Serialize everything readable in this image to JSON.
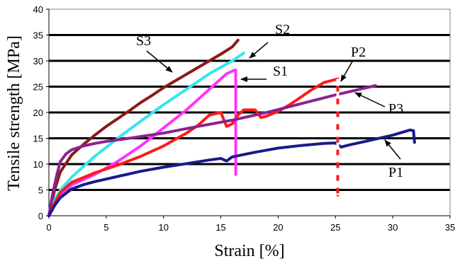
{
  "chart_data": {
    "type": "line",
    "xlabel": "Strain [%]",
    "ylabel": "Tensile strength [MPa]",
    "xlim": [
      0,
      35
    ],
    "ylim": [
      0,
      40
    ],
    "xticks": [
      "0",
      "5",
      "10",
      "15",
      "20",
      "25",
      "30",
      "35"
    ],
    "yticks": [
      "0",
      "5",
      "10",
      "15",
      "20",
      "25",
      "30",
      "35",
      "40"
    ],
    "grid": "horizontal",
    "series": [
      {
        "name": "S3",
        "color": "#8b1a1a",
        "x": [
          0,
          0.5,
          1,
          2,
          3,
          4,
          5,
          6,
          7,
          8,
          9,
          10,
          11,
          12,
          13,
          14,
          15,
          16,
          16.5
        ],
        "y": [
          0,
          5,
          8.5,
          11.8,
          13.8,
          15.6,
          17.3,
          18.8,
          20.3,
          21.9,
          23.3,
          24.8,
          26.1,
          27.4,
          28.7,
          30,
          31.3,
          32.7,
          34
        ]
      },
      {
        "name": "S2",
        "color": "#33e6f0",
        "x": [
          0,
          0.5,
          1,
          2,
          4,
          6,
          8,
          10,
          12,
          14,
          16,
          17
        ],
        "y": [
          0,
          3,
          5,
          7.5,
          11.5,
          15,
          18.3,
          21.5,
          24.5,
          27.5,
          30,
          31.5
        ]
      },
      {
        "name": "S1",
        "color": "#ff33ff",
        "x": [
          0,
          0.5,
          1,
          2,
          4,
          6,
          8,
          10,
          12,
          14,
          15.5,
          16.2,
          16.3,
          16.3
        ],
        "y": [
          0,
          2,
          4,
          6,
          8,
          10.5,
          13.5,
          17,
          20.5,
          24.5,
          27.5,
          28.2,
          28.2,
          8
        ]
      },
      {
        "name": "P2",
        "color": "#ff1a1a",
        "x": [
          0,
          0.5,
          1,
          2,
          4,
          6,
          8,
          10,
          12,
          13,
          14,
          15,
          15.5,
          16,
          16.5,
          17,
          18,
          18.5,
          19,
          20,
          21,
          22,
          23,
          24,
          25.2,
          25.2
        ],
        "y": [
          0,
          2.5,
          4.5,
          6.5,
          8.3,
          9.8,
          11.5,
          13.5,
          16,
          17.5,
          19.5,
          20,
          17.3,
          17.8,
          19.5,
          20.5,
          20.5,
          19,
          19.3,
          20.2,
          21.5,
          23,
          24.5,
          25.8,
          26.5,
          4
        ]
      },
      {
        "name": "P3",
        "color": "#8b2290",
        "x": [
          0,
          0.3,
          0.7,
          1,
          1.5,
          2,
          3,
          4,
          5,
          7,
          10,
          13,
          16,
          19,
          22,
          25,
          28.5
        ],
        "y": [
          0,
          4,
          8,
          10.5,
          12,
          12.8,
          13.5,
          14,
          14.4,
          15,
          16,
          17.3,
          18.5,
          20,
          21.7,
          23.4,
          25.2
        ]
      },
      {
        "name": "P1",
        "color": "#1a1a8b",
        "x": [
          0,
          0.5,
          1,
          2,
          3,
          4,
          6,
          8,
          10,
          12,
          14,
          15,
          15.5,
          16,
          18,
          20,
          22,
          24,
          25,
          25.5,
          26,
          28,
          30,
          31.5,
          31.8,
          31.9
        ],
        "y": [
          0,
          2,
          3.5,
          5.2,
          6,
          6.6,
          7.6,
          8.6,
          9.4,
          10.1,
          10.8,
          11.1,
          10.6,
          11.4,
          12.3,
          13.1,
          13.6,
          14,
          14.1,
          13.3,
          13.6,
          14.6,
          15.6,
          16.6,
          16.5,
          14.2
        ]
      }
    ],
    "annotations": [
      {
        "text": "S3",
        "series": "S3"
      },
      {
        "text": "S2",
        "series": "S2"
      },
      {
        "text": "S1",
        "series": "S1"
      },
      {
        "text": "P2",
        "series": "P2"
      },
      {
        "text": "P3",
        "series": "P3"
      },
      {
        "text": "P1",
        "series": "P1"
      }
    ]
  }
}
